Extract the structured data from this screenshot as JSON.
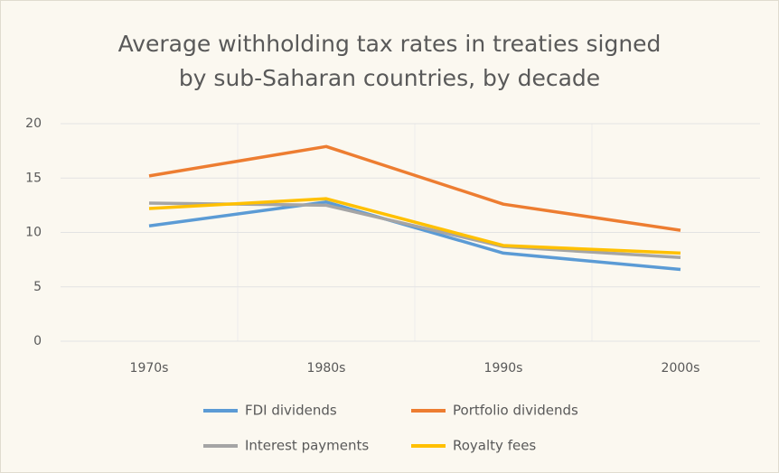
{
  "chart_data": {
    "type": "line",
    "title": [
      "Average withholding tax rates in treaties signed",
      "by sub-Saharan countries, by decade"
    ],
    "categories": [
      "1970s",
      "1980s",
      "1990s",
      "2000s"
    ],
    "series": [
      {
        "name": "FDI dividends",
        "color": "#5b9bd5",
        "values": [
          10.6,
          12.8,
          8.1,
          6.6
        ]
      },
      {
        "name": "Portfolio dividends",
        "color": "#ed7d31",
        "values": [
          15.2,
          17.9,
          12.6,
          10.2
        ]
      },
      {
        "name": "Interest payments",
        "color": "#a5a5a5",
        "values": [
          12.7,
          12.5,
          8.7,
          7.7
        ]
      },
      {
        "name": "Royalty fees",
        "color": "#ffc000",
        "values": [
          12.2,
          13.1,
          8.8,
          8.1
        ]
      }
    ],
    "ylim": [
      0,
      20
    ],
    "yticks": [
      0,
      5,
      10,
      15,
      20
    ],
    "grid": true,
    "legend": "bottom"
  }
}
